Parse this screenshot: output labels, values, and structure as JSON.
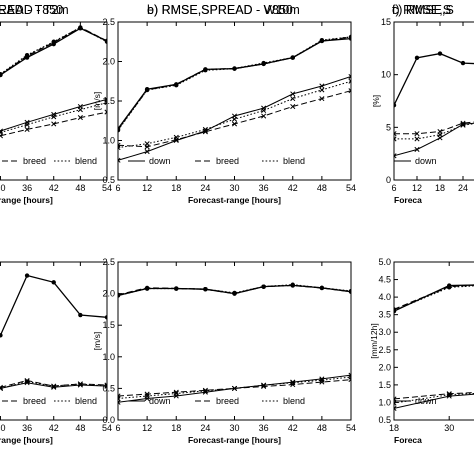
{
  "chart_data": [
    {
      "type": "line",
      "panel_letter": "",
      "title": "EAD - T850",
      "xlabel": "range [hours]",
      "ylabel": "",
      "x": [
        30,
        36,
        42,
        48,
        54
      ],
      "xticks": [
        "30",
        "36",
        "42",
        "48",
        "54"
      ],
      "xlim": [
        29,
        54
      ],
      "ylim": [
        0,
        2.0
      ],
      "yticks": [],
      "series": [
        {
          "style": "solid",
          "role": "rmse",
          "marker": "circle",
          "values": [
            1.33,
            1.55,
            1.72,
            1.92,
            1.76
          ]
        },
        {
          "style": "dashed",
          "role": "rmse",
          "marker": "circle",
          "values": [
            1.33,
            1.57,
            1.74,
            1.93,
            1.76
          ]
        },
        {
          "style": "dotted",
          "role": "rmse",
          "marker": "circle",
          "values": [
            1.34,
            1.58,
            1.75,
            1.93,
            1.75
          ]
        },
        {
          "style": "solid",
          "role": "spread",
          "marker": "cross",
          "values": [
            0.62,
            0.73,
            0.83,
            0.93,
            1.02
          ]
        },
        {
          "style": "dashed",
          "role": "spread",
          "marker": "cross",
          "values": [
            0.56,
            0.64,
            0.71,
            0.79,
            0.86
          ]
        },
        {
          "style": "dotted",
          "role": "spread",
          "marker": "cross",
          "values": [
            0.6,
            0.7,
            0.8,
            0.89,
            0.98
          ]
        }
      ],
      "legend": [
        "breed",
        "blend"
      ],
      "grid": false
    },
    {
      "type": "line",
      "panel_letter": "b)",
      "title": "RMSE,SPREAD - V850",
      "xlabel": "Forecast-range [hours]",
      "ylabel": "[m/s]",
      "x": [
        6,
        12,
        18,
        24,
        30,
        36,
        42,
        48,
        54
      ],
      "xticks": [
        "6",
        "12",
        "18",
        "24",
        "30",
        "36",
        "42",
        "48",
        "54"
      ],
      "xlim": [
        6,
        54
      ],
      "ylim": [
        0.5,
        2.5
      ],
      "yticks": [
        "0.5",
        "1.0",
        "1.5",
        "2.0",
        "2.5"
      ],
      "series": [
        {
          "style": "solid",
          "role": "rmse",
          "marker": "circle",
          "values": [
            1.15,
            1.65,
            1.71,
            1.9,
            1.91,
            1.97,
            2.05,
            2.26,
            2.29
          ]
        },
        {
          "style": "dashed",
          "role": "rmse",
          "marker": "circle",
          "values": [
            1.14,
            1.64,
            1.71,
            1.9,
            1.91,
            1.97,
            2.05,
            2.26,
            2.31
          ]
        },
        {
          "style": "dotted",
          "role": "rmse",
          "marker": "circle",
          "values": [
            1.13,
            1.64,
            1.7,
            1.89,
            1.91,
            1.98,
            2.05,
            2.27,
            2.31
          ]
        },
        {
          "style": "solid",
          "role": "spread",
          "marker": "cross",
          "values": [
            0.75,
            0.86,
            1.0,
            1.12,
            1.31,
            1.41,
            1.59,
            1.69,
            1.81
          ]
        },
        {
          "style": "dashed",
          "role": "spread",
          "marker": "cross",
          "values": [
            0.94,
            0.92,
            1.01,
            1.11,
            1.21,
            1.31,
            1.43,
            1.53,
            1.63
          ]
        },
        {
          "style": "dotted",
          "role": "spread",
          "marker": "cross",
          "values": [
            0.91,
            0.96,
            1.04,
            1.14,
            1.27,
            1.38,
            1.53,
            1.64,
            1.75
          ]
        }
      ],
      "legend": [
        "down",
        "breed",
        "blend"
      ],
      "grid": false
    },
    {
      "type": "line",
      "panel_letter": "c)",
      "title": "RMSE,S",
      "xlabel": "Foreca",
      "ylabel": "[%]",
      "x": [
        6,
        12,
        18,
        24,
        30
      ],
      "xticks": [
        "6",
        "12",
        "18",
        "24"
      ],
      "xlim": [
        6,
        30
      ],
      "ylim": [
        0,
        15
      ],
      "yticks": [
        "0",
        "5",
        "10",
        "15"
      ],
      "series": [
        {
          "style": "solid",
          "role": "rmse",
          "marker": "circle",
          "values": [
            7.1,
            11.6,
            12.0,
            11.1,
            11.0
          ]
        },
        {
          "style": "solid",
          "role": "spread",
          "marker": "cross",
          "values": [
            2.3,
            2.9,
            4.0,
            5.3,
            5.5
          ]
        },
        {
          "style": "dashed",
          "role": "spread",
          "marker": "cross",
          "values": [
            4.4,
            4.4,
            4.6,
            5.4,
            5.6
          ]
        },
        {
          "style": "dotted",
          "role": "spread",
          "marker": "cross",
          "values": [
            3.9,
            3.9,
            4.3,
            5.2,
            5.5
          ]
        }
      ],
      "legend": [
        "down"
      ],
      "grid": false
    },
    {
      "type": "line",
      "panel_letter": "",
      "title": "READ - T2m",
      "xlabel": "range [hours]",
      "ylabel": "",
      "x": [
        30,
        36,
        42,
        48,
        54
      ],
      "xticks": [
        "30",
        "36",
        "42",
        "48",
        "54"
      ],
      "xlim": [
        29,
        54
      ],
      "ylim": [
        1.0,
        2.4
      ],
      "yticks": [],
      "series": [
        {
          "style": "solid",
          "role": "rmse",
          "marker": "circle",
          "values": [
            1.75,
            2.28,
            2.22,
            1.93,
            1.91
          ]
        },
        {
          "style": "solid",
          "role": "spread",
          "marker": "cross",
          "values": [
            1.28,
            1.33,
            1.29,
            1.31,
            1.3
          ]
        },
        {
          "style": "dashed",
          "role": "spread",
          "marker": "cross",
          "values": [
            1.29,
            1.35,
            1.3,
            1.32,
            1.31
          ]
        },
        {
          "style": "dotted",
          "role": "spread",
          "marker": "cross",
          "values": [
            1.28,
            1.34,
            1.3,
            1.32,
            1.3
          ]
        }
      ],
      "legend": [
        "breed",
        "blend"
      ],
      "grid": false
    },
    {
      "type": "line",
      "panel_letter": "e)",
      "title": "RMSE,SPREAD - W10m",
      "xlabel": "Forecast-range [hours]",
      "ylabel": "[m/s]",
      "x": [
        6,
        12,
        18,
        24,
        30,
        36,
        42,
        48,
        54
      ],
      "xticks": [
        "6",
        "12",
        "18",
        "24",
        "30",
        "36",
        "42",
        "48",
        "54"
      ],
      "xlim": [
        6,
        54
      ],
      "ylim": [
        0,
        2.5
      ],
      "yticks": [
        "0.0",
        "0.5",
        "1.0",
        "1.5",
        "2.0",
        "2.5"
      ],
      "series": [
        {
          "style": "solid",
          "role": "rmse",
          "marker": "circle",
          "values": [
            1.97,
            2.08,
            2.08,
            2.07,
            2.0,
            2.11,
            2.13,
            2.09,
            2.03
          ]
        },
        {
          "style": "dashed",
          "role": "rmse",
          "marker": "circle",
          "values": [
            1.98,
            2.09,
            2.08,
            2.07,
            2.0,
            2.11,
            2.13,
            2.09,
            2.03
          ]
        },
        {
          "style": "dotted",
          "role": "rmse",
          "marker": "circle",
          "values": [
            1.97,
            2.08,
            2.08,
            2.07,
            2.01,
            2.11,
            2.14,
            2.09,
            2.04
          ]
        },
        {
          "style": "solid",
          "role": "spread",
          "marker": "cross",
          "values": [
            0.28,
            0.34,
            0.38,
            0.44,
            0.5,
            0.55,
            0.6,
            0.65,
            0.71
          ]
        },
        {
          "style": "dashed",
          "role": "spread",
          "marker": "cross",
          "values": [
            0.38,
            0.41,
            0.44,
            0.47,
            0.5,
            0.53,
            0.56,
            0.6,
            0.64
          ]
        },
        {
          "style": "dotted",
          "role": "spread",
          "marker": "cross",
          "values": [
            0.34,
            0.38,
            0.42,
            0.46,
            0.5,
            0.55,
            0.59,
            0.63,
            0.68
          ]
        }
      ],
      "legend": [
        "down",
        "breed",
        "blend"
      ],
      "grid": false
    },
    {
      "type": "line",
      "panel_letter": "f)",
      "title": "RMSE,S",
      "xlabel": "Foreca",
      "ylabel": "[mm/12h]",
      "x": [
        18,
        30,
        42
      ],
      "xticks": [
        "18",
        "30"
      ],
      "xlim": [
        18,
        38
      ],
      "ylim": [
        0.5,
        5.0
      ],
      "yticks": [
        "0.5",
        "1.0",
        "1.5",
        "2.0",
        "2.5",
        "3.0",
        "3.5",
        "4.0",
        "4.5",
        "5.0"
      ],
      "series": [
        {
          "style": "solid",
          "role": "rmse",
          "marker": "circle",
          "values": [
            3.6,
            4.33,
            4.36
          ]
        },
        {
          "style": "dashed",
          "role": "rmse",
          "marker": "circle",
          "values": [
            3.65,
            4.3,
            4.4
          ]
        },
        {
          "style": "dotted",
          "role": "rmse",
          "marker": "circle",
          "values": [
            3.62,
            4.28,
            4.38
          ]
        },
        {
          "style": "solid",
          "role": "spread",
          "marker": "cross",
          "values": [
            0.83,
            1.18,
            1.3
          ]
        },
        {
          "style": "dashed",
          "role": "spread",
          "marker": "cross",
          "values": [
            1.1,
            1.25,
            1.32
          ]
        },
        {
          "style": "dotted",
          "role": "spread",
          "marker": "cross",
          "values": [
            0.98,
            1.22,
            1.3
          ]
        }
      ],
      "legend": [
        "down"
      ],
      "grid": false
    }
  ]
}
